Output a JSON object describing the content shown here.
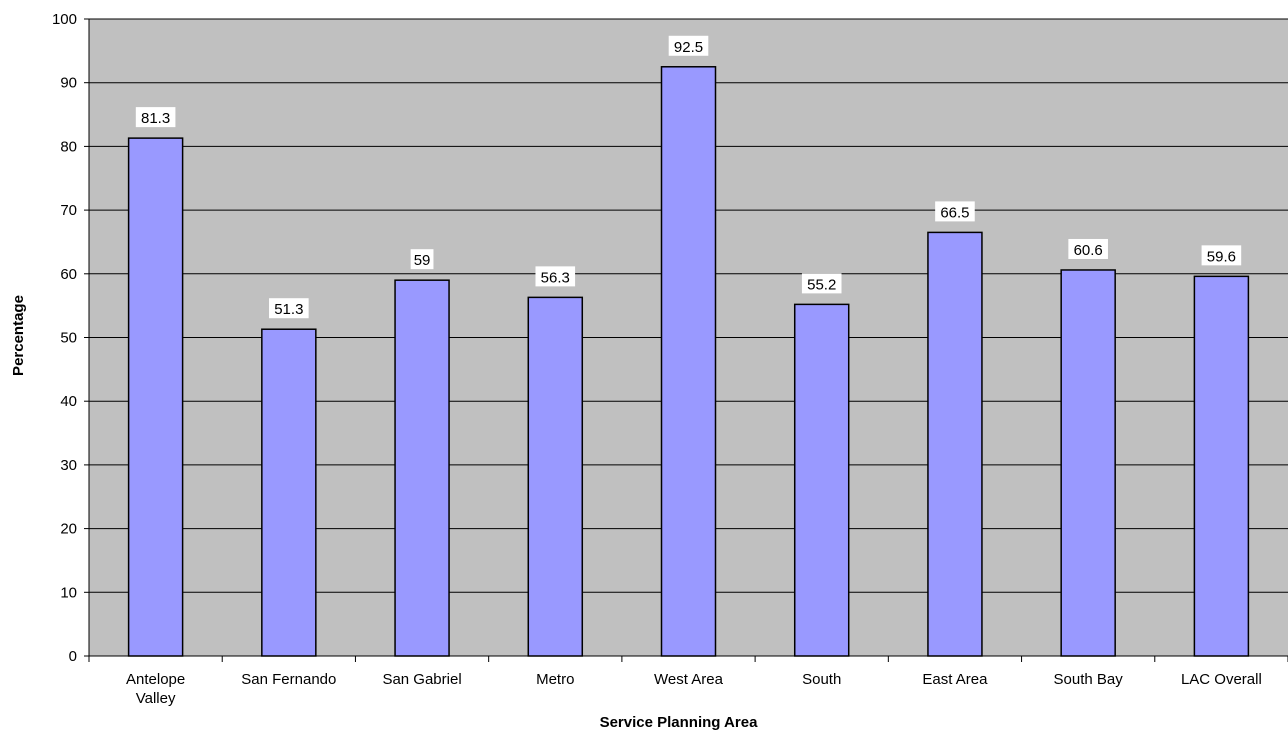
{
  "chart_data": {
    "type": "bar",
    "title": "",
    "xlabel": "Service Planning Area",
    "ylabel": "Percentage",
    "categories": [
      "Antelope Valley",
      "San Fernando",
      "San Gabriel",
      "Metro",
      "West Area",
      "South",
      "East Area",
      "South Bay",
      "LAC Overall"
    ],
    "category_lines": [
      [
        "Antelope",
        "Valley"
      ],
      [
        "San Fernando"
      ],
      [
        "San Gabriel"
      ],
      [
        "Metro"
      ],
      [
        "West Area"
      ],
      [
        "South"
      ],
      [
        "East Area"
      ],
      [
        "South Bay"
      ],
      [
        "LAC Overall"
      ]
    ],
    "values": [
      81.3,
      51.3,
      59,
      56.3,
      92.5,
      55.2,
      66.5,
      60.6,
      59.6
    ],
    "value_labels": [
      "81.3",
      "51.3",
      "59",
      "56.3",
      "92.5",
      "55.2",
      "66.5",
      "60.6",
      "59.6"
    ],
    "ylim": [
      0,
      100
    ],
    "yticks": [
      0,
      10,
      20,
      30,
      40,
      50,
      60,
      70,
      80,
      90,
      100
    ],
    "grid": true,
    "legend": "none",
    "colors": {
      "plot_background": "#c0c0c0",
      "bar_fill": "#9999ff",
      "bar_stroke": "#000000",
      "gridline": "#000000",
      "label_background": "#ffffff"
    }
  }
}
